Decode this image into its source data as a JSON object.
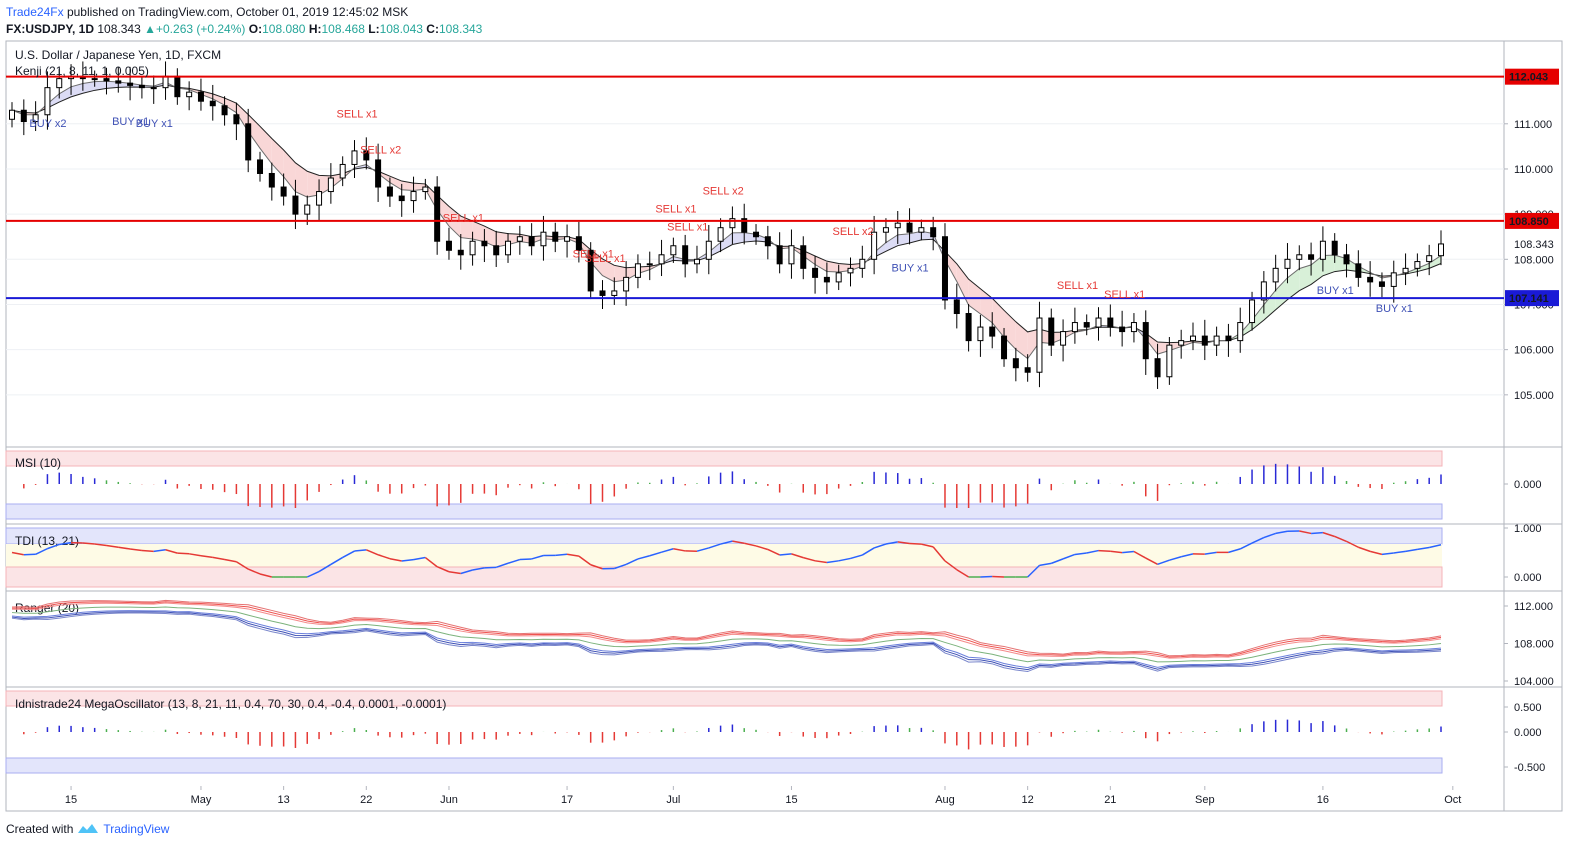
{
  "header": {
    "author": "Trade24Fx",
    "published": "published on TradingView.com, October 01, 2019 12:45:02 MSK",
    "symbol": "FX:USDJPY, 1D",
    "last": "108.343",
    "change": "+0.263 (+0.24%)",
    "o_label": "O:",
    "o": "108.080",
    "h_label": "H:",
    "h": "108.468",
    "l_label": "L:",
    "l": "108.043",
    "c_label": "C:",
    "c": "108.343"
  },
  "footer": {
    "created_with": "Created with",
    "brand": "TradingView"
  },
  "colors": {
    "up": "#ffffff",
    "down": "#000000",
    "red_line": "#e50000",
    "blue_line": "#1a1ad6",
    "buy": "#3f51b5",
    "sell": "#e53935"
  },
  "chart_data": [
    {
      "type": "candlestick",
      "title": "U.S. Dollar / Japanese Yen, 1D, FXCM",
      "indicator_label": "Kenji (21, 8, 11, 1, 0.005)",
      "y_ticks": [
        "111.000",
        "110.000",
        "109.000",
        "108.000",
        "107.000",
        "106.000",
        "105.000"
      ],
      "ylim": [
        104.0,
        112.7
      ],
      "x_ticks": [
        {
          "label": "15",
          "i": 5
        },
        {
          "label": "May",
          "i": 16
        },
        {
          "label": "13",
          "i": 23
        },
        {
          "label": "22",
          "i": 30
        },
        {
          "label": "Jun",
          "i": 37
        },
        {
          "label": "17",
          "i": 47
        },
        {
          "label": "Jul",
          "i": 56
        },
        {
          "label": "15",
          "i": 66
        },
        {
          "label": "Aug",
          "i": 79
        },
        {
          "label": "12",
          "i": 86
        },
        {
          "label": "21",
          "i": 93
        },
        {
          "label": "Sep",
          "i": 101
        },
        {
          "label": "16",
          "i": 111
        },
        {
          "label": "Oct",
          "i": 122
        }
      ],
      "horizontal_levels": [
        {
          "value": 112.043,
          "label": "112.043",
          "color": "#e50000"
        },
        {
          "value": 108.85,
          "label": "108.850",
          "color": "#e50000"
        },
        {
          "value": 107.141,
          "label": "107.141",
          "color": "#1a1ad6"
        }
      ],
      "last_price_label": "108.343",
      "last_price": 108.343,
      "close": [
        111.3,
        111.05,
        111.2,
        111.8,
        112.0,
        112.05,
        112.0,
        112.0,
        111.95,
        111.9,
        111.85,
        111.8,
        111.8,
        112.05,
        111.6,
        111.7,
        111.5,
        111.4,
        111.2,
        111.0,
        110.2,
        109.9,
        109.6,
        109.4,
        109.0,
        109.2,
        109.5,
        109.8,
        110.1,
        110.4,
        110.2,
        109.6,
        109.4,
        109.3,
        109.5,
        109.6,
        108.4,
        108.2,
        108.1,
        108.4,
        108.3,
        108.1,
        108.4,
        108.5,
        108.3,
        108.6,
        108.4,
        108.5,
        108.2,
        107.3,
        107.2,
        107.3,
        107.6,
        107.9,
        107.9,
        108.1,
        108.3,
        107.9,
        108.0,
        108.4,
        108.7,
        108.9,
        108.6,
        108.5,
        108.3,
        107.9,
        108.3,
        107.8,
        107.6,
        107.5,
        107.7,
        107.8,
        108.0,
        108.6,
        108.7,
        108.8,
        108.6,
        108.7,
        108.5,
        107.1,
        106.8,
        106.2,
        106.5,
        106.3,
        105.8,
        105.6,
        105.5,
        106.7,
        106.1,
        106.4,
        106.6,
        106.5,
        106.7,
        106.5,
        106.4,
        106.6,
        105.8,
        105.4,
        106.1,
        106.2,
        106.3,
        106.1,
        106.3,
        106.2,
        106.6,
        107.1,
        107.5,
        107.8,
        108.0,
        108.1,
        108.0,
        108.4,
        108.1,
        107.9,
        107.6,
        107.5,
        107.4,
        107.7,
        107.8,
        107.95,
        108.08,
        108.34
      ],
      "signals": [
        {
          "text": "BUY x2",
          "i": 3,
          "kind": "buy"
        },
        {
          "text": "BUY x1",
          "i": 10,
          "kind": "buy"
        },
        {
          "text": "BUY x1",
          "i": 12,
          "kind": "buy"
        },
        {
          "text": "SELL x1",
          "i": 29,
          "kind": "sell"
        },
        {
          "text": "SELL x2",
          "i": 31,
          "kind": "sell"
        },
        {
          "text": "SELL x1",
          "i": 38,
          "kind": "sell"
        },
        {
          "text": "SELL x1",
          "i": 49,
          "kind": "sell"
        },
        {
          "text": "SELL x1",
          "i": 50,
          "kind": "sell"
        },
        {
          "text": "SELL x1",
          "i": 56,
          "kind": "sell"
        },
        {
          "text": "SELL x1",
          "i": 57,
          "kind": "sell"
        },
        {
          "text": "SELL x2",
          "i": 60,
          "kind": "sell"
        },
        {
          "text": "SELL x2",
          "i": 71,
          "kind": "sell"
        },
        {
          "text": "BUY x1",
          "i": 76,
          "kind": "buy"
        },
        {
          "text": "SELL x1",
          "i": 90,
          "kind": "sell"
        },
        {
          "text": "SELL x1",
          "i": 94,
          "kind": "sell"
        },
        {
          "text": "BUY x1",
          "i": 112,
          "kind": "buy"
        },
        {
          "text": "BUY x1",
          "i": 117,
          "kind": "buy"
        }
      ]
    },
    {
      "type": "bar",
      "title": "MSI (10)",
      "y_ticks": [
        "0.000"
      ]
    },
    {
      "type": "line",
      "title": "TDI (13, 21)",
      "y_ticks": [
        "1.000",
        "0.000"
      ]
    },
    {
      "type": "line",
      "title": "Ranger (20)",
      "y_ticks": [
        "112.000",
        "108.000",
        "104.000"
      ]
    },
    {
      "type": "bar",
      "title": "Idnistrade24 MegaOscillator (13, 8, 21, 11, 0.4, 70, 30, 0.4, -0.4, 0.0001, -0.0001)",
      "y_ticks": [
        "0.500",
        "0.000",
        "-0.500"
      ]
    }
  ]
}
